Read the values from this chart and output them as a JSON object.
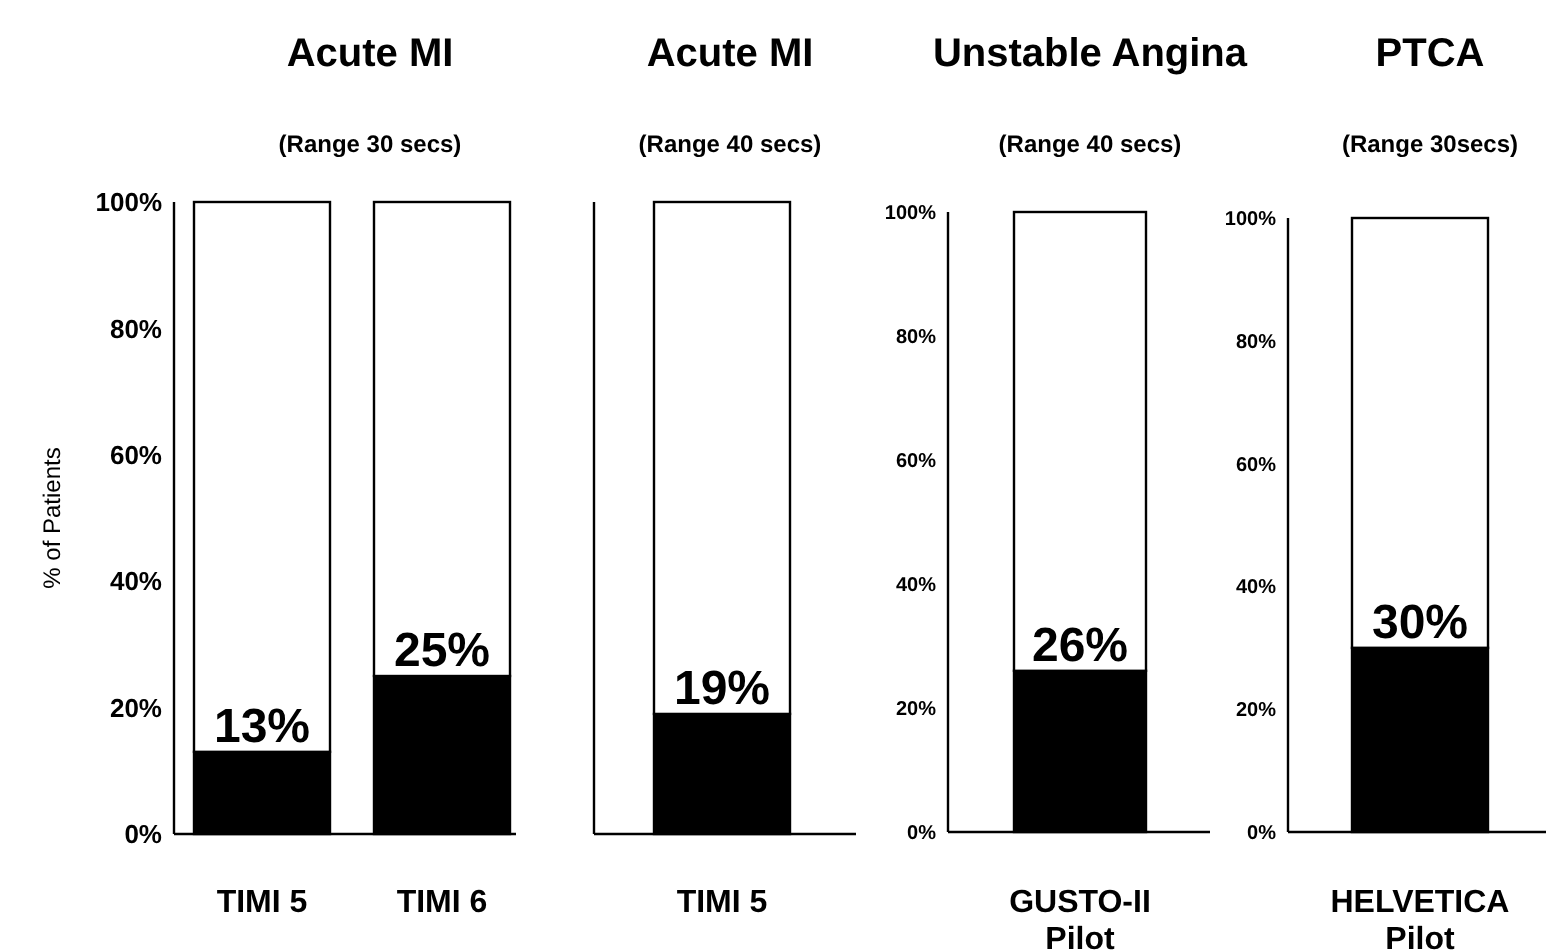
{
  "chart_data": [
    {
      "type": "bar",
      "title": "Acute MI",
      "subtitle": "(Range 30 secs)",
      "ylabel": "% of Patients",
      "categories": [
        "TIMI 5",
        "TIMI 6"
      ],
      "stacked": true,
      "grid": false,
      "ylim": [
        0,
        100
      ],
      "yticks": [
        {
          "value": 0,
          "label": "0%"
        },
        {
          "value": 20,
          "label": "20%"
        },
        {
          "value": 40,
          "label": "40%"
        },
        {
          "value": 60,
          "label": "60%"
        },
        {
          "value": 80,
          "label": "80%"
        },
        {
          "value": 100,
          "label": "100%"
        }
      ],
      "series": [
        {
          "color": "#000000",
          "values": [
            13,
            25
          ],
          "value_labels": [
            "13%",
            "25%"
          ]
        },
        {
          "color": "#ffffff",
          "values": [
            87,
            75
          ]
        }
      ]
    },
    {
      "type": "bar",
      "title": "Acute MI",
      "subtitle": "(Range 40 secs)",
      "categories": [
        "TIMI 5"
      ],
      "stacked": true,
      "grid": false,
      "tick_labels": "x",
      "ylim": [
        0,
        100
      ],
      "series": [
        {
          "color": "#000000",
          "values": [
            19
          ],
          "value_labels": [
            "19%"
          ]
        },
        {
          "color": "#ffffff",
          "values": [
            81
          ]
        }
      ]
    },
    {
      "type": "bar",
      "title": "Unstable Angina",
      "subtitle": "(Range 40 secs)",
      "categories": [
        "GUSTO-II Pilot"
      ],
      "stacked": true,
      "grid": false,
      "ylim": [
        0,
        100
      ],
      "yticks": [
        {
          "value": 0,
          "label": "0%"
        },
        {
          "value": 20,
          "label": "20%"
        },
        {
          "value": 40,
          "label": "40%"
        },
        {
          "value": 60,
          "label": "60%"
        },
        {
          "value": 80,
          "label": "80%"
        },
        {
          "value": 100,
          "label": "100%"
        }
      ],
      "series": [
        {
          "color": "#000000",
          "values": [
            26
          ],
          "value_labels": [
            "26%"
          ]
        },
        {
          "color": "#ffffff",
          "values": [
            74
          ]
        }
      ]
    },
    {
      "type": "bar",
      "title": "PTCA",
      "subtitle": "(Range 30secs)",
      "categories": [
        "HELVETICA Pilot"
      ],
      "stacked": true,
      "grid": false,
      "ylim": [
        0,
        100
      ],
      "yticks": [
        {
          "value": 0,
          "label": "0%"
        },
        {
          "value": 20,
          "label": "20%"
        },
        {
          "value": 40,
          "label": "40%"
        },
        {
          "value": 60,
          "label": "60%"
        },
        {
          "value": 80,
          "label": "80%"
        },
        {
          "value": 100,
          "label": "100%"
        }
      ],
      "series": [
        {
          "color": "#000000",
          "values": [
            30
          ],
          "value_labels": [
            "30%"
          ]
        },
        {
          "color": "#ffffff",
          "values": [
            70
          ]
        }
      ]
    }
  ]
}
